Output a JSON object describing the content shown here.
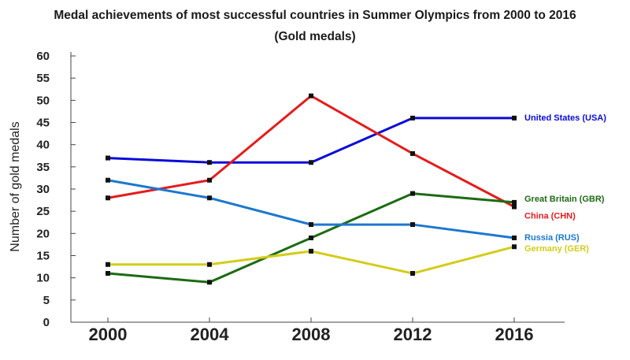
{
  "chart_data": {
    "type": "line",
    "title": "Medal achievements of most successful countries in Summer Olympics from 2000 to 2016",
    "subtitle": "(Gold medals)",
    "xlabel": "",
    "ylabel": "Number of gold medals",
    "x": [
      "2000",
      "2004",
      "2008",
      "2012",
      "2016"
    ],
    "ylim": [
      0,
      60
    ],
    "yticks": [
      "0",
      "5",
      "10",
      "15",
      "20",
      "25",
      "30",
      "35",
      "40",
      "45",
      "50",
      "55",
      "60"
    ],
    "grid": false,
    "legend": "labels at line ends",
    "series": [
      {
        "name": "United States (USA)",
        "color": "#0a0ad8",
        "values": [
          37,
          36,
          36,
          46,
          46
        ]
      },
      {
        "name": "China (CHN)",
        "color": "#e51b1b",
        "values": [
          28,
          32,
          51,
          38,
          26
        ]
      },
      {
        "name": "Great Britain (GBR)",
        "color": "#1c6b12",
        "values": [
          11,
          9,
          19,
          29,
          27
        ]
      },
      {
        "name": "Russia (RUS)",
        "color": "#1b78d0",
        "values": [
          32,
          28,
          22,
          22,
          19
        ]
      },
      {
        "name": "Germany (GER)",
        "color": "#d4cc1a",
        "values": [
          13,
          13,
          16,
          11,
          17
        ]
      }
    ]
  }
}
